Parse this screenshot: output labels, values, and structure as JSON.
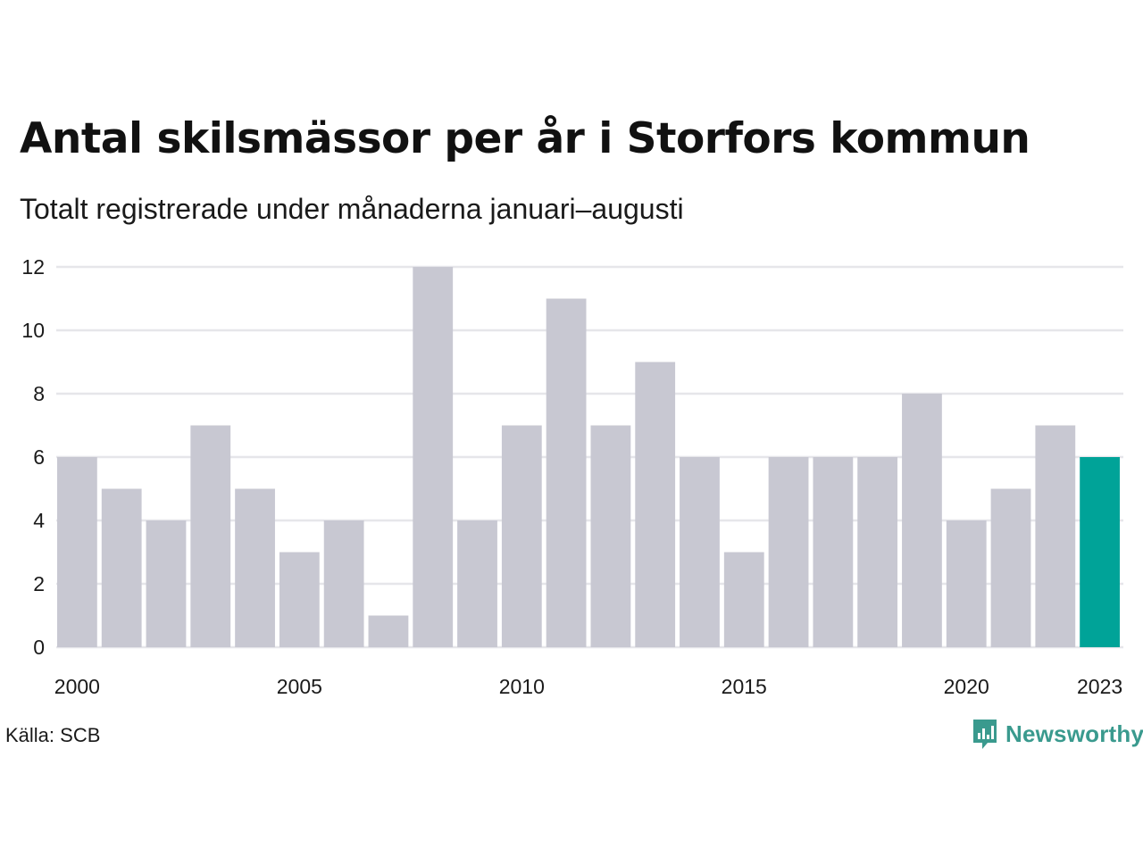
{
  "title": "Antal skilsmässor per år i Storfors kommun",
  "subtitle": "Totalt registrerade under månaderna januari–augusti",
  "source": "Källa: SCB",
  "logo_text": "Newsworthy",
  "colors": {
    "bar": "#c8c8d2",
    "highlight": "#00a398",
    "grid": "#e6e6ea",
    "logo": "#3a9a8e"
  },
  "chart_data": {
    "type": "bar",
    "title": "Antal skilsmässor per år i Storfors kommun",
    "subtitle": "Totalt registrerade under månaderna januari–augusti",
    "xlabel": "",
    "ylabel": "",
    "categories": [
      "2000",
      "2001",
      "2002",
      "2003",
      "2004",
      "2005",
      "2006",
      "2007",
      "2008",
      "2009",
      "2010",
      "2011",
      "2012",
      "2013",
      "2014",
      "2015",
      "2016",
      "2017",
      "2018",
      "2019",
      "2020",
      "2021",
      "2022",
      "2023"
    ],
    "values": [
      6,
      5,
      4,
      7,
      5,
      3,
      4,
      1,
      12,
      4,
      7,
      11,
      7,
      9,
      6,
      3,
      6,
      6,
      6,
      8,
      4,
      5,
      7,
      6
    ],
    "highlight_index": 23,
    "ylim": [
      0,
      12
    ],
    "yticks": [
      0,
      2,
      4,
      6,
      8,
      10,
      12
    ],
    "xtick_labels": [
      "2000",
      "2005",
      "2010",
      "2015",
      "2020",
      "2023"
    ],
    "grid": "horizontal",
    "legend": "none"
  }
}
